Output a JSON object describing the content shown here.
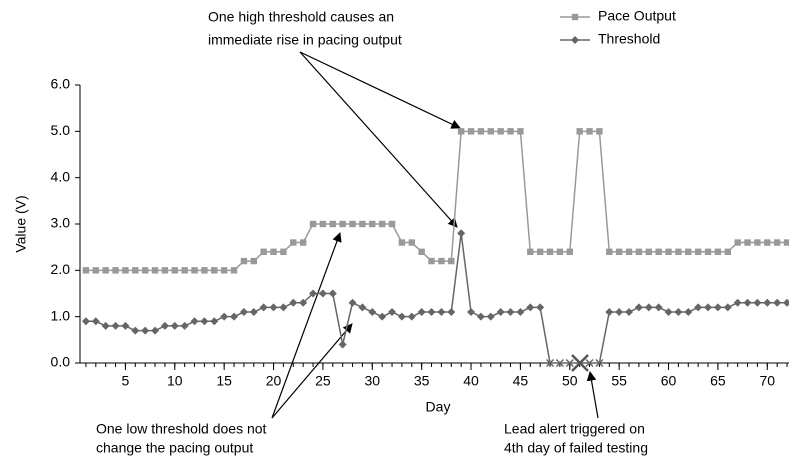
{
  "chart_data": {
    "type": "line",
    "xlabel": "Day",
    "ylabel": "Value (V)",
    "x": [
      1,
      2,
      3,
      4,
      5,
      6,
      7,
      8,
      9,
      10,
      11,
      12,
      13,
      14,
      15,
      16,
      17,
      18,
      19,
      20,
      21,
      22,
      23,
      24,
      25,
      26,
      27,
      28,
      29,
      30,
      31,
      32,
      33,
      34,
      35,
      36,
      37,
      38,
      39,
      40,
      41,
      42,
      43,
      44,
      45,
      46,
      47,
      48,
      49,
      50,
      51,
      52,
      53,
      54,
      55,
      56,
      57,
      58,
      59,
      60,
      61,
      62,
      63,
      64,
      65,
      66,
      67,
      68,
      69,
      70,
      71,
      72
    ],
    "series": [
      {
        "name": "Pace Output",
        "color": "#999999",
        "marker": "square",
        "values": [
          2.0,
          2.0,
          2.0,
          2.0,
          2.0,
          2.0,
          2.0,
          2.0,
          2.0,
          2.0,
          2.0,
          2.0,
          2.0,
          2.0,
          2.0,
          2.0,
          2.2,
          2.2,
          2.4,
          2.4,
          2.4,
          2.6,
          2.6,
          3.0,
          3.0,
          3.0,
          3.0,
          3.0,
          3.0,
          3.0,
          3.0,
          3.0,
          2.6,
          2.6,
          2.4,
          2.2,
          2.2,
          2.2,
          5.0,
          5.0,
          5.0,
          5.0,
          5.0,
          5.0,
          5.0,
          2.4,
          2.4,
          2.4,
          2.4,
          2.4,
          5.0,
          5.0,
          5.0,
          2.4,
          2.4,
          2.4,
          2.4,
          2.4,
          2.4,
          2.4,
          2.4,
          2.4,
          2.4,
          2.4,
          2.4,
          2.4,
          2.6,
          2.6,
          2.6,
          2.6,
          2.6,
          2.6
        ]
      },
      {
        "name": "Threshold",
        "color": "#666666",
        "marker": "diamond",
        "values": [
          0.9,
          0.9,
          0.8,
          0.8,
          0.8,
          0.7,
          0.7,
          0.7,
          0.8,
          0.8,
          0.8,
          0.9,
          0.9,
          0.9,
          1.0,
          1.0,
          1.1,
          1.1,
          1.2,
          1.2,
          1.2,
          1.3,
          1.3,
          1.5,
          1.5,
          1.5,
          0.4,
          1.3,
          1.2,
          1.1,
          1.0,
          1.1,
          1.0,
          1.0,
          1.1,
          1.1,
          1.1,
          1.1,
          2.8,
          1.1,
          1.0,
          1.0,
          1.1,
          1.1,
          1.1,
          1.2,
          1.2,
          0,
          0,
          0,
          0,
          0,
          0,
          1.1,
          1.1,
          1.1,
          1.2,
          1.2,
          1.2,
          1.1,
          1.1,
          1.1,
          1.2,
          1.2,
          1.2,
          1.2,
          1.3,
          1.3,
          1.3,
          1.3,
          1.3,
          1.3
        ]
      }
    ],
    "xlim": [
      0.4,
      72.2
    ],
    "xticks": [
      5,
      10,
      15,
      20,
      25,
      30,
      35,
      40,
      45,
      50,
      55,
      60,
      65,
      70
    ],
    "ylim": [
      0,
      6
    ],
    "yticks": [
      {
        "value": 0,
        "label": "0.0"
      },
      {
        "value": 1,
        "label": "1.0"
      },
      {
        "value": 2,
        "label": "2.0"
      },
      {
        "value": 3,
        "label": "3.0"
      },
      {
        "value": 4,
        "label": "4.0"
      },
      {
        "value": 5,
        "label": "5.0"
      },
      {
        "value": 6,
        "label": "6.0"
      }
    ],
    "legend": "top-right",
    "annotations": [
      [
        "One high threshold causes an",
        "immediate rise in pacing output"
      ],
      [
        "One low threshold does not",
        "change the pacing output"
      ],
      [
        "Lead alert triggered on",
        "4th day of failed testing"
      ]
    ]
  }
}
